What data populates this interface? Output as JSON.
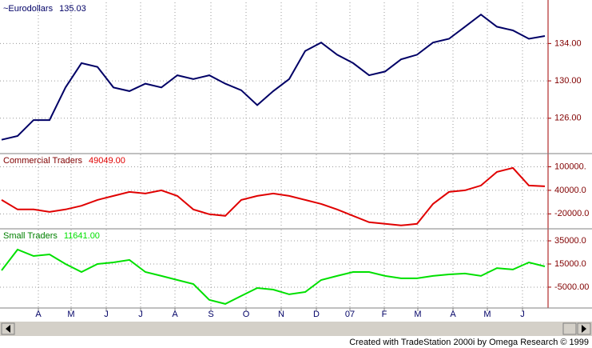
{
  "chart_data": [
    {
      "type": "line",
      "title": "~Eurodollars",
      "last": {
        "value": 135.03,
        "label": "135.03"
      },
      "x": [
        0,
        2,
        4,
        6,
        8,
        10,
        12,
        14,
        16,
        18,
        20,
        22,
        24,
        26,
        28,
        30,
        32,
        34,
        36,
        38,
        40,
        42,
        44,
        46,
        48,
        50,
        52,
        54,
        56,
        58,
        60,
        62,
        64,
        66,
        68
      ],
      "series": [
        {
          "name": "~Eurodollars",
          "color": "#000066",
          "values": [
            123.7,
            124.1,
            125.8,
            125.8,
            129.3,
            131.9,
            131.5,
            129.3,
            128.9,
            129.7,
            129.3,
            130.6,
            130.2,
            130.6,
            129.7,
            129.0,
            127.4,
            128.9,
            130.2,
            133.2,
            134.1,
            132.8,
            131.9,
            130.6,
            131.0,
            132.3,
            132.8,
            134.1,
            134.5,
            135.8,
            137.1,
            135.8,
            135.4,
            134.5,
            134.8
          ]
        }
      ],
      "xlim": [
        -0.2,
        68.4
      ],
      "xticks": [
        {
          "value": 4.6,
          "label": "A"
        },
        {
          "value": 8.7,
          "label": "M"
        },
        {
          "value": 13.1,
          "label": "J"
        },
        {
          "value": 17.4,
          "label": "J"
        },
        {
          "value": 21.7,
          "label": "A"
        },
        {
          "value": 26.2,
          "label": "S"
        },
        {
          "value": 30.6,
          "label": "O"
        },
        {
          "value": 35,
          "label": "N"
        },
        {
          "value": 39.4,
          "label": "D"
        },
        {
          "value": 43.6,
          "label": "07"
        },
        {
          "value": 47.9,
          "label": "F"
        },
        {
          "value": 52.1,
          "label": "M"
        },
        {
          "value": 56.5,
          "label": "A"
        },
        {
          "value": 60.8,
          "label": "M"
        },
        {
          "value": 65.2,
          "label": "J"
        }
      ],
      "ylim": [
        122.3,
        138.4
      ],
      "yticks": [
        {
          "value": 126,
          "label": "126.00"
        },
        {
          "value": 130,
          "label": "130.00"
        },
        {
          "value": 134,
          "label": "134.00"
        }
      ],
      "grid": true
    },
    {
      "type": "line",
      "title": "Commercial Traders",
      "last": {
        "value": 49049,
        "label": "49049.00"
      },
      "x": [
        0,
        2,
        4,
        6,
        8,
        10,
        12,
        14,
        16,
        18,
        20,
        22,
        24,
        26,
        28,
        30,
        32,
        34,
        36,
        38,
        40,
        42,
        44,
        46,
        48,
        50,
        52,
        54,
        56,
        58,
        60,
        62,
        64,
        66,
        68
      ],
      "series": [
        {
          "name": "Commercial Traders",
          "color": "#e00000",
          "values": [
            15600,
            -8800,
            -8800,
            -15000,
            -8800,
            700,
            15600,
            25800,
            35900,
            31900,
            40000,
            25800,
            -8800,
            -21000,
            -25000,
            15600,
            25800,
            31900,
            25800,
            15600,
            5400,
            -8800,
            -25000,
            -41400,
            -45400,
            -49500,
            -45400,
            5400,
            35900,
            40000,
            52200,
            86800,
            97000,
            52200,
            50100
          ]
        }
      ],
      "xlim": [
        -0.2,
        68.4
      ],
      "ylim": [
        -56000,
        131500
      ],
      "yticks": [
        {
          "value": -20000,
          "label": "-20000.0"
        },
        {
          "value": 40000,
          "label": "40000.0"
        },
        {
          "value": 100000,
          "label": "100000."
        }
      ],
      "grid": true
    },
    {
      "type": "line",
      "title": "Small Traders",
      "last": {
        "value": 11641,
        "label": "11641.00"
      },
      "x": [
        0,
        2,
        4,
        6,
        8,
        10,
        12,
        14,
        16,
        18,
        20,
        22,
        24,
        26,
        28,
        30,
        32,
        34,
        36,
        38,
        40,
        42,
        44,
        46,
        48,
        50,
        52,
        54,
        56,
        58,
        60,
        62,
        64,
        66,
        68
      ],
      "series": [
        {
          "name": "Small Traders",
          "color": "#00e000",
          "values": [
            9500,
            27400,
            21900,
            23300,
            15000,
            8100,
            15000,
            16400,
            18500,
            8100,
            4700,
            1200,
            -2300,
            -16000,
            -19500,
            -12600,
            -5700,
            -7100,
            -11200,
            -9200,
            1200,
            4700,
            8100,
            8100,
            4700,
            2600,
            2600,
            4700,
            6000,
            6800,
            4700,
            11500,
            10200,
            16400,
            12900
          ]
        }
      ],
      "xlim": [
        -0.2,
        68.4
      ],
      "ylim": [
        -23000,
        44700
      ],
      "yticks": [
        {
          "value": -5000,
          "label": "-5000.00"
        },
        {
          "value": 15000,
          "label": "15000.0"
        },
        {
          "value": 35000,
          "label": "35000.0"
        }
      ],
      "grid": true
    }
  ],
  "footer": "Created with TradeStation 2000i by Omega Research © 1999"
}
